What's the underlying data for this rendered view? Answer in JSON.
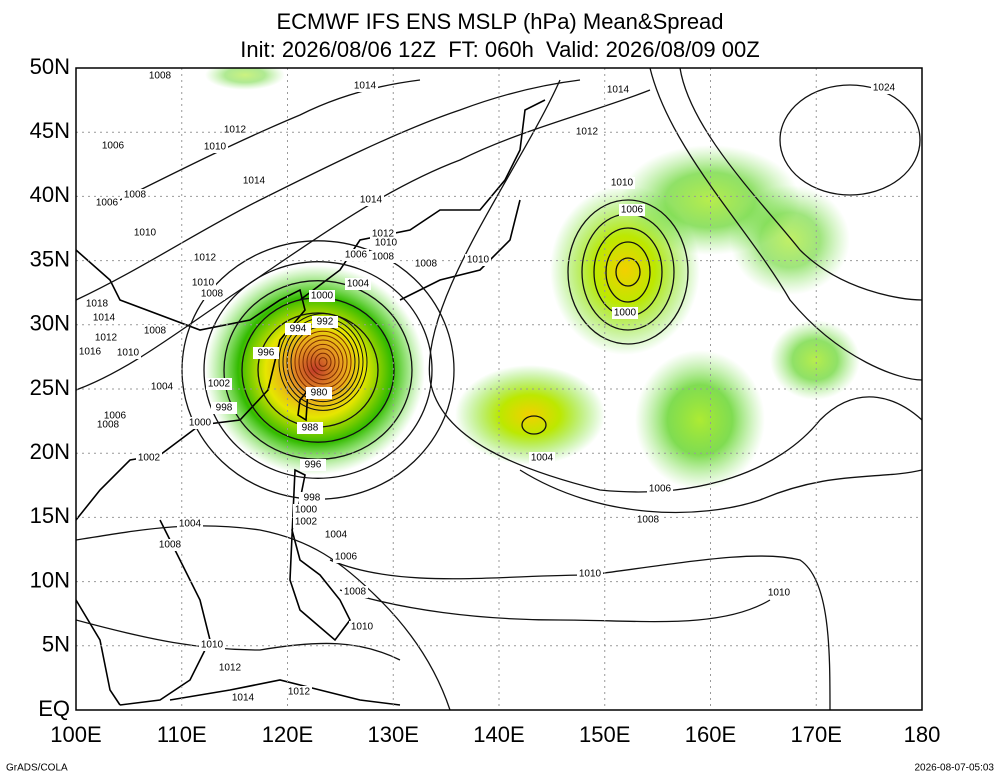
{
  "title": [
    "ECMWF IFS ENS MSLP (hPa) Mean&Spread",
    "Init: 2026/08/06 12Z  FT: 060h  Valid: 2026/08/09 00Z"
  ],
  "map": {
    "xlim": [
      100,
      180
    ],
    "xticks": [
      {
        "value": 100,
        "label": "100E"
      },
      {
        "value": 110,
        "label": "110E"
      },
      {
        "value": 120,
        "label": "120E"
      },
      {
        "value": 130,
        "label": "130E"
      },
      {
        "value": 140,
        "label": "140E"
      },
      {
        "value": 150,
        "label": "150E"
      },
      {
        "value": 160,
        "label": "160E"
      },
      {
        "value": 170,
        "label": "170E"
      },
      180
    ],
    "ylim": [
      0,
      50
    ],
    "yticks": [
      {
        "value": 0,
        "label": "EQ"
      },
      {
        "value": 5,
        "label": "5N"
      },
      {
        "value": 10,
        "label": "10N"
      },
      {
        "value": 15,
        "label": "15N"
      },
      {
        "value": 20,
        "label": "20N"
      },
      {
        "value": 25,
        "label": "25N"
      },
      {
        "value": 30,
        "label": "30N"
      },
      {
        "value": 35,
        "label": "35N"
      },
      {
        "value": 40,
        "label": "40N"
      },
      {
        "value": 45,
        "label": "45N"
      },
      {
        "value": 50,
        "label": "50N"
      }
    ],
    "isobar_labels": [
      1008,
      1014,
      1014,
      1024,
      1012,
      1012,
      1006,
      1010,
      1014,
      1010,
      1008,
      1006,
      1014,
      1006,
      1010,
      1012,
      1010,
      1006,
      1008,
      1012,
      1008,
      1010,
      1004,
      1010,
      1008,
      1000,
      1018,
      1014,
      1000,
      992,
      994,
      1008,
      1012,
      996,
      1016,
      1010,
      1004,
      1002,
      980,
      998,
      1006,
      1008,
      1000,
      988,
      1002,
      1004,
      996,
      1006,
      998,
      1000,
      1008,
      1002,
      1004,
      1004,
      1008,
      1006,
      1010,
      1010,
      1008,
      1010,
      1010,
      1012,
      1014,
      1012
    ]
  },
  "footer": {
    "left": "GrADS/COLA",
    "right": "2026-08-07-05:03"
  }
}
